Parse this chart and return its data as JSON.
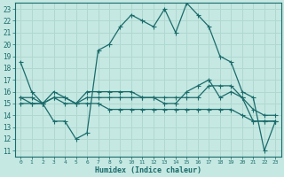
{
  "xlabel": "Humidex (Indice chaleur)",
  "xlim": [
    -0.5,
    23.5
  ],
  "ylim": [
    10.5,
    23.5
  ],
  "xticks": [
    0,
    1,
    2,
    3,
    4,
    5,
    6,
    7,
    8,
    9,
    10,
    11,
    12,
    13,
    14,
    15,
    16,
    17,
    18,
    19,
    20,
    21,
    22,
    23
  ],
  "yticks": [
    11,
    12,
    13,
    14,
    15,
    16,
    17,
    18,
    19,
    20,
    21,
    22,
    23
  ],
  "bg_color": "#c5e8e2",
  "line_color": "#1a6b6b",
  "grid_color": "#b0d8d0",
  "line1_x": [
    0,
    1,
    2,
    3,
    4,
    5,
    6,
    7,
    8,
    9,
    10,
    11,
    12,
    13,
    14,
    15,
    16,
    17,
    18,
    19,
    20,
    21,
    22,
    23
  ],
  "line1_y": [
    18.5,
    16.0,
    15.0,
    13.5,
    13.5,
    12.0,
    12.5,
    19.5,
    20.0,
    21.5,
    22.5,
    22.0,
    21.5,
    23.0,
    21.0,
    23.5,
    22.5,
    21.5,
    19.0,
    18.5,
    16.0,
    15.5,
    11.0,
    13.5
  ],
  "line2_x": [
    0,
    1,
    2,
    3,
    4,
    5,
    6,
    7,
    8,
    9,
    10,
    11,
    12,
    13,
    14,
    15,
    16,
    17,
    18,
    19,
    20,
    21,
    22,
    23
  ],
  "line2_y": [
    15.5,
    15.0,
    15.0,
    16.0,
    15.5,
    15.0,
    16.0,
    16.0,
    16.0,
    16.0,
    16.0,
    15.5,
    15.5,
    15.5,
    15.5,
    15.5,
    15.5,
    16.5,
    16.5,
    16.5,
    15.5,
    14.5,
    14.0,
    14.0
  ],
  "line3_x": [
    0,
    1,
    2,
    3,
    4,
    5,
    6,
    7,
    8,
    9,
    10,
    11,
    12,
    13,
    14,
    15,
    16,
    17,
    18,
    19,
    20,
    21,
    22,
    23
  ],
  "line3_y": [
    15.5,
    15.5,
    15.0,
    15.5,
    15.5,
    15.0,
    15.5,
    15.5,
    15.5,
    15.5,
    15.5,
    15.5,
    15.5,
    15.0,
    15.0,
    16.0,
    16.5,
    17.0,
    15.5,
    16.0,
    15.5,
    13.5,
    13.5,
    13.5
  ],
  "line4_x": [
    0,
    1,
    2,
    3,
    4,
    5,
    6,
    7,
    8,
    9,
    10,
    11,
    12,
    13,
    14,
    15,
    16,
    17,
    18,
    19,
    20,
    21,
    22,
    23
  ],
  "line4_y": [
    15.0,
    15.0,
    15.0,
    15.5,
    15.0,
    15.0,
    15.0,
    15.0,
    14.5,
    14.5,
    14.5,
    14.5,
    14.5,
    14.5,
    14.5,
    14.5,
    14.5,
    14.5,
    14.5,
    14.5,
    14.0,
    13.5,
    13.5,
    13.5
  ]
}
